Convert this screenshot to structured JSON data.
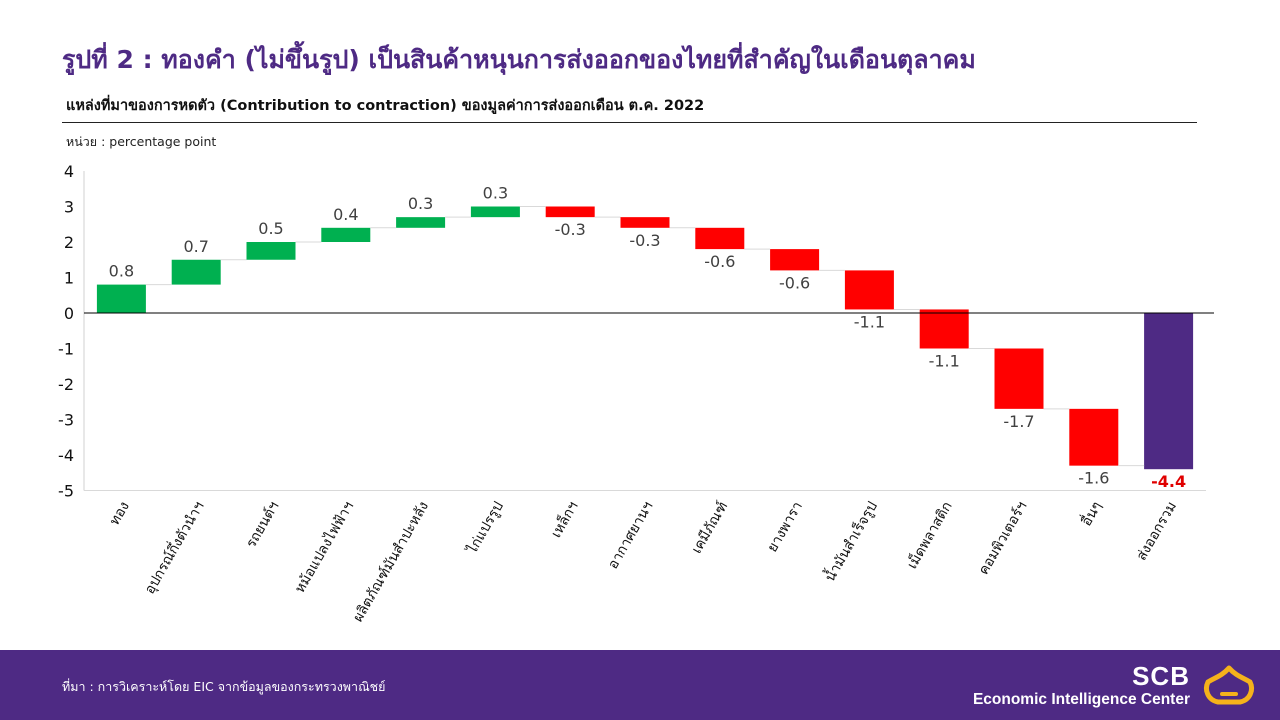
{
  "title": "รูปที่ 2 : ทองคำ (ไม่ขึ้นรูป) เป็นสินค้าหนุนการส่งออกของไทยที่สำคัญในเดือนตุลาคม",
  "subtitle": "แหล่งที่มาของการหดตัว (Contribution to contraction) ของมูลค่าการส่งออกเดือน ต.ค. 2022",
  "unit_label": "หน่วย : percentage  point",
  "source": "ที่มา : การวิเคราะห์โดย EIC จากข้อมูลของกระทรวงพาณิชย์",
  "brand": {
    "name": "SCB",
    "tagline": "Economic Intelligence Center",
    "logo_icon": "scb-crest-icon"
  },
  "colors": {
    "positive": "#00b050",
    "negative": "#ff0000",
    "total": "#4e2a84",
    "total_label": "#e00000",
    "footer": "#4e2a84"
  },
  "chart_data": {
    "type": "waterfall",
    "ylim": [
      -5,
      4
    ],
    "yticks": [
      "4",
      "3",
      "2",
      "1",
      "0",
      "-1",
      "-2",
      "-3",
      "-4",
      "-5"
    ],
    "categories": [
      "ทอง",
      "อุปกรณ์กึ่งตัวนำฯ",
      "รถยนต์ฯ",
      "หม้อแปลงไฟฟ้าฯ",
      "ผลิตภัณฑ์มันสำปะหลัง",
      "ไก่แปรรูป",
      "เหล็กฯ",
      "อากาศยานฯ",
      "เคมีภัณฑ์",
      "ยางพารา",
      "น้ำมันสำเร็จรูป",
      "เม็ดพลาสติก",
      "คอมพิวเตอร์ฯ",
      "อื่นๆ",
      "ส่งออกรวม"
    ],
    "values": [
      0.8,
      0.7,
      0.5,
      0.4,
      0.3,
      0.3,
      -0.3,
      -0.3,
      -0.6,
      -0.6,
      -1.1,
      -1.1,
      -1.7,
      -1.6,
      -4.4
    ],
    "labels": [
      "0.8",
      "0.7",
      "0.5",
      "0.4",
      "0.3",
      "0.3",
      "-0.3",
      "-0.3",
      "-0.6",
      "-0.6",
      "-1.1",
      "-1.1",
      "-1.7",
      "-1.6",
      "-4.4"
    ],
    "total_index": 14,
    "grid": false,
    "connectors": true
  }
}
